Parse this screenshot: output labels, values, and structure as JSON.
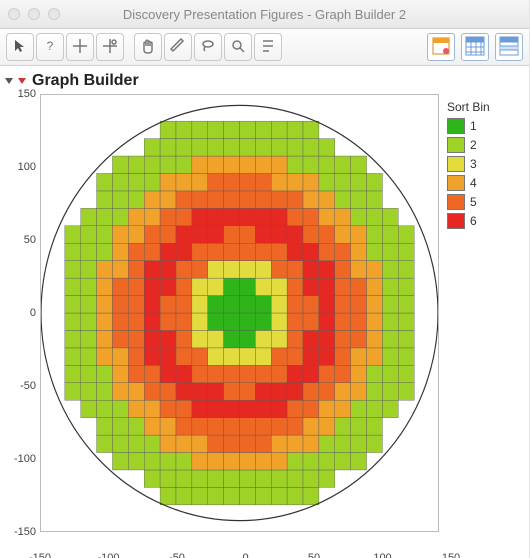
{
  "window": {
    "title": "Discovery Presentation Figures - Graph Builder 2",
    "traffic_colors": [
      "#e6e6e6",
      "#e6e6e6",
      "#e6e6e6"
    ]
  },
  "toolbar": {
    "left_icons": [
      "pointer",
      "help",
      "crosshair",
      "crosshair-plus"
    ],
    "mid_icons": [
      "hand",
      "brush",
      "lasso",
      "zoom",
      "annotate"
    ],
    "view_icons": [
      "data-view",
      "grid-blue",
      "grid-stripe"
    ]
  },
  "section": {
    "title": "Graph Builder"
  },
  "chart": {
    "type": "heatmap",
    "radius": 150,
    "xlim": [
      -150,
      150
    ],
    "ylim": [
      -150,
      150
    ],
    "xticks": [
      -150,
      -100,
      -50,
      0,
      50,
      100,
      150
    ],
    "yticks": [
      -150,
      -100,
      -50,
      0,
      50,
      100,
      150
    ],
    "cell_size": 12,
    "background_color": "#ffffff",
    "axis_color": "#bbbbbb",
    "circle_color": "#333333",
    "tick_fontsize": 11,
    "legend_title": "Sort Bin",
    "rings": {
      "bin4_hi": 110,
      "bin5_hi": 92,
      "bin6_hi": 74,
      "bin5b_hi": 55,
      "bin4b_hi": 37,
      "bin3_hi": 20
    },
    "bins": {
      "1": "#2fb51a",
      "2": "#9ed227",
      "3": "#e3dc3e",
      "4": "#f0a22a",
      "5": "#ee6725",
      "6": "#e52822"
    }
  }
}
